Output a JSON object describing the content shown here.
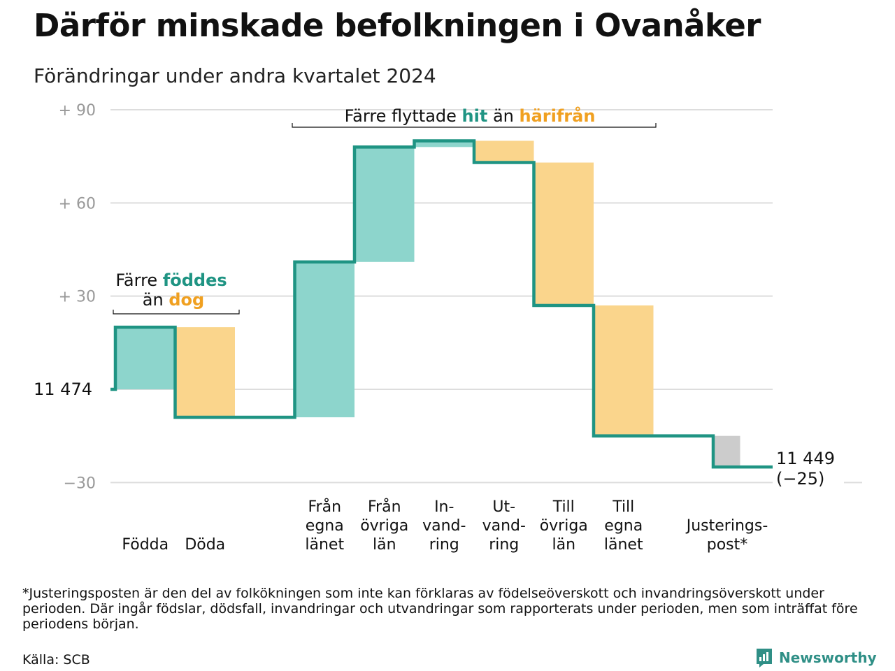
{
  "title": "Därför minskade befolkningen i Ovanåker",
  "subtitle": "Förändringar under andra kvartalet 2024",
  "colors": {
    "increase": "#8dd5cc",
    "decrease": "#fad58c",
    "adjustment": "#cccccc",
    "line": "#1f9483",
    "hit": "#1f9483",
    "harifran": "#f0a020",
    "grid": "#dddddd",
    "tick": "#999999",
    "brand": "#2f8f86"
  },
  "chart_data": {
    "type": "waterfall",
    "start_label": "11  474",
    "end_label": "11 449",
    "end_change_label": "(−25)",
    "y_ticks": [
      {
        "value": 90,
        "label": "+  90"
      },
      {
        "value": 60,
        "label": "+  60"
      },
      {
        "value": 30,
        "label": "+  30"
      },
      {
        "value": 0,
        "label": ""
      },
      {
        "value": -30,
        "label": "−30"
      }
    ],
    "ylim": [
      -30,
      90
    ],
    "steps": [
      {
        "label": [
          "Födda"
        ],
        "change": 20,
        "color": "increase"
      },
      {
        "label": [
          "Döda"
        ],
        "change": -29,
        "color": "decrease"
      },
      {
        "label": [],
        "change": 0,
        "color": "none"
      },
      {
        "label": [
          "Från",
          "egna",
          "länet"
        ],
        "change": 50,
        "color": "increase"
      },
      {
        "label": [
          "Från",
          "övriga",
          "län"
        ],
        "change": 37,
        "color": "increase"
      },
      {
        "label": [
          "In-",
          "vand-",
          "ring"
        ],
        "change": 2,
        "color": "increase"
      },
      {
        "label": [
          "Ut-",
          "vand-",
          "ring"
        ],
        "change": -7,
        "color": "decrease"
      },
      {
        "label": [
          "Till",
          "övriga",
          "län"
        ],
        "change": -46,
        "color": "decrease"
      },
      {
        "label": [
          "Till",
          "egna",
          "länet"
        ],
        "change": -42,
        "color": "decrease"
      },
      {
        "label": [],
        "change": 0,
        "color": "none"
      },
      {
        "label": [
          "Justerings-",
          "post*"
        ],
        "change": -10,
        "color": "adjustment"
      }
    ],
    "annotations": {
      "births": {
        "prefix": "Färre ",
        "hl1": "föddes",
        "line2_prefix": "än ",
        "hl2": "dog"
      },
      "moves": {
        "prefix": "Färre flyttade ",
        "hl1": "hit",
        "mid": " än ",
        "hl2": "härifrån"
      }
    }
  },
  "footnote": "*Justeringsposten är den del av folkökningen som inte kan förklaras av födelseöverskott och invandringsöverskott under perioden. Där ingår födslar, dödsfall, invandringar och utvandringar som rapporterats under perioden, men som inträffat före periodens början.",
  "source": "Källa: SCB",
  "brand_name": "Newsworthy",
  "brand_icon": "newsworthy-logo-icon"
}
